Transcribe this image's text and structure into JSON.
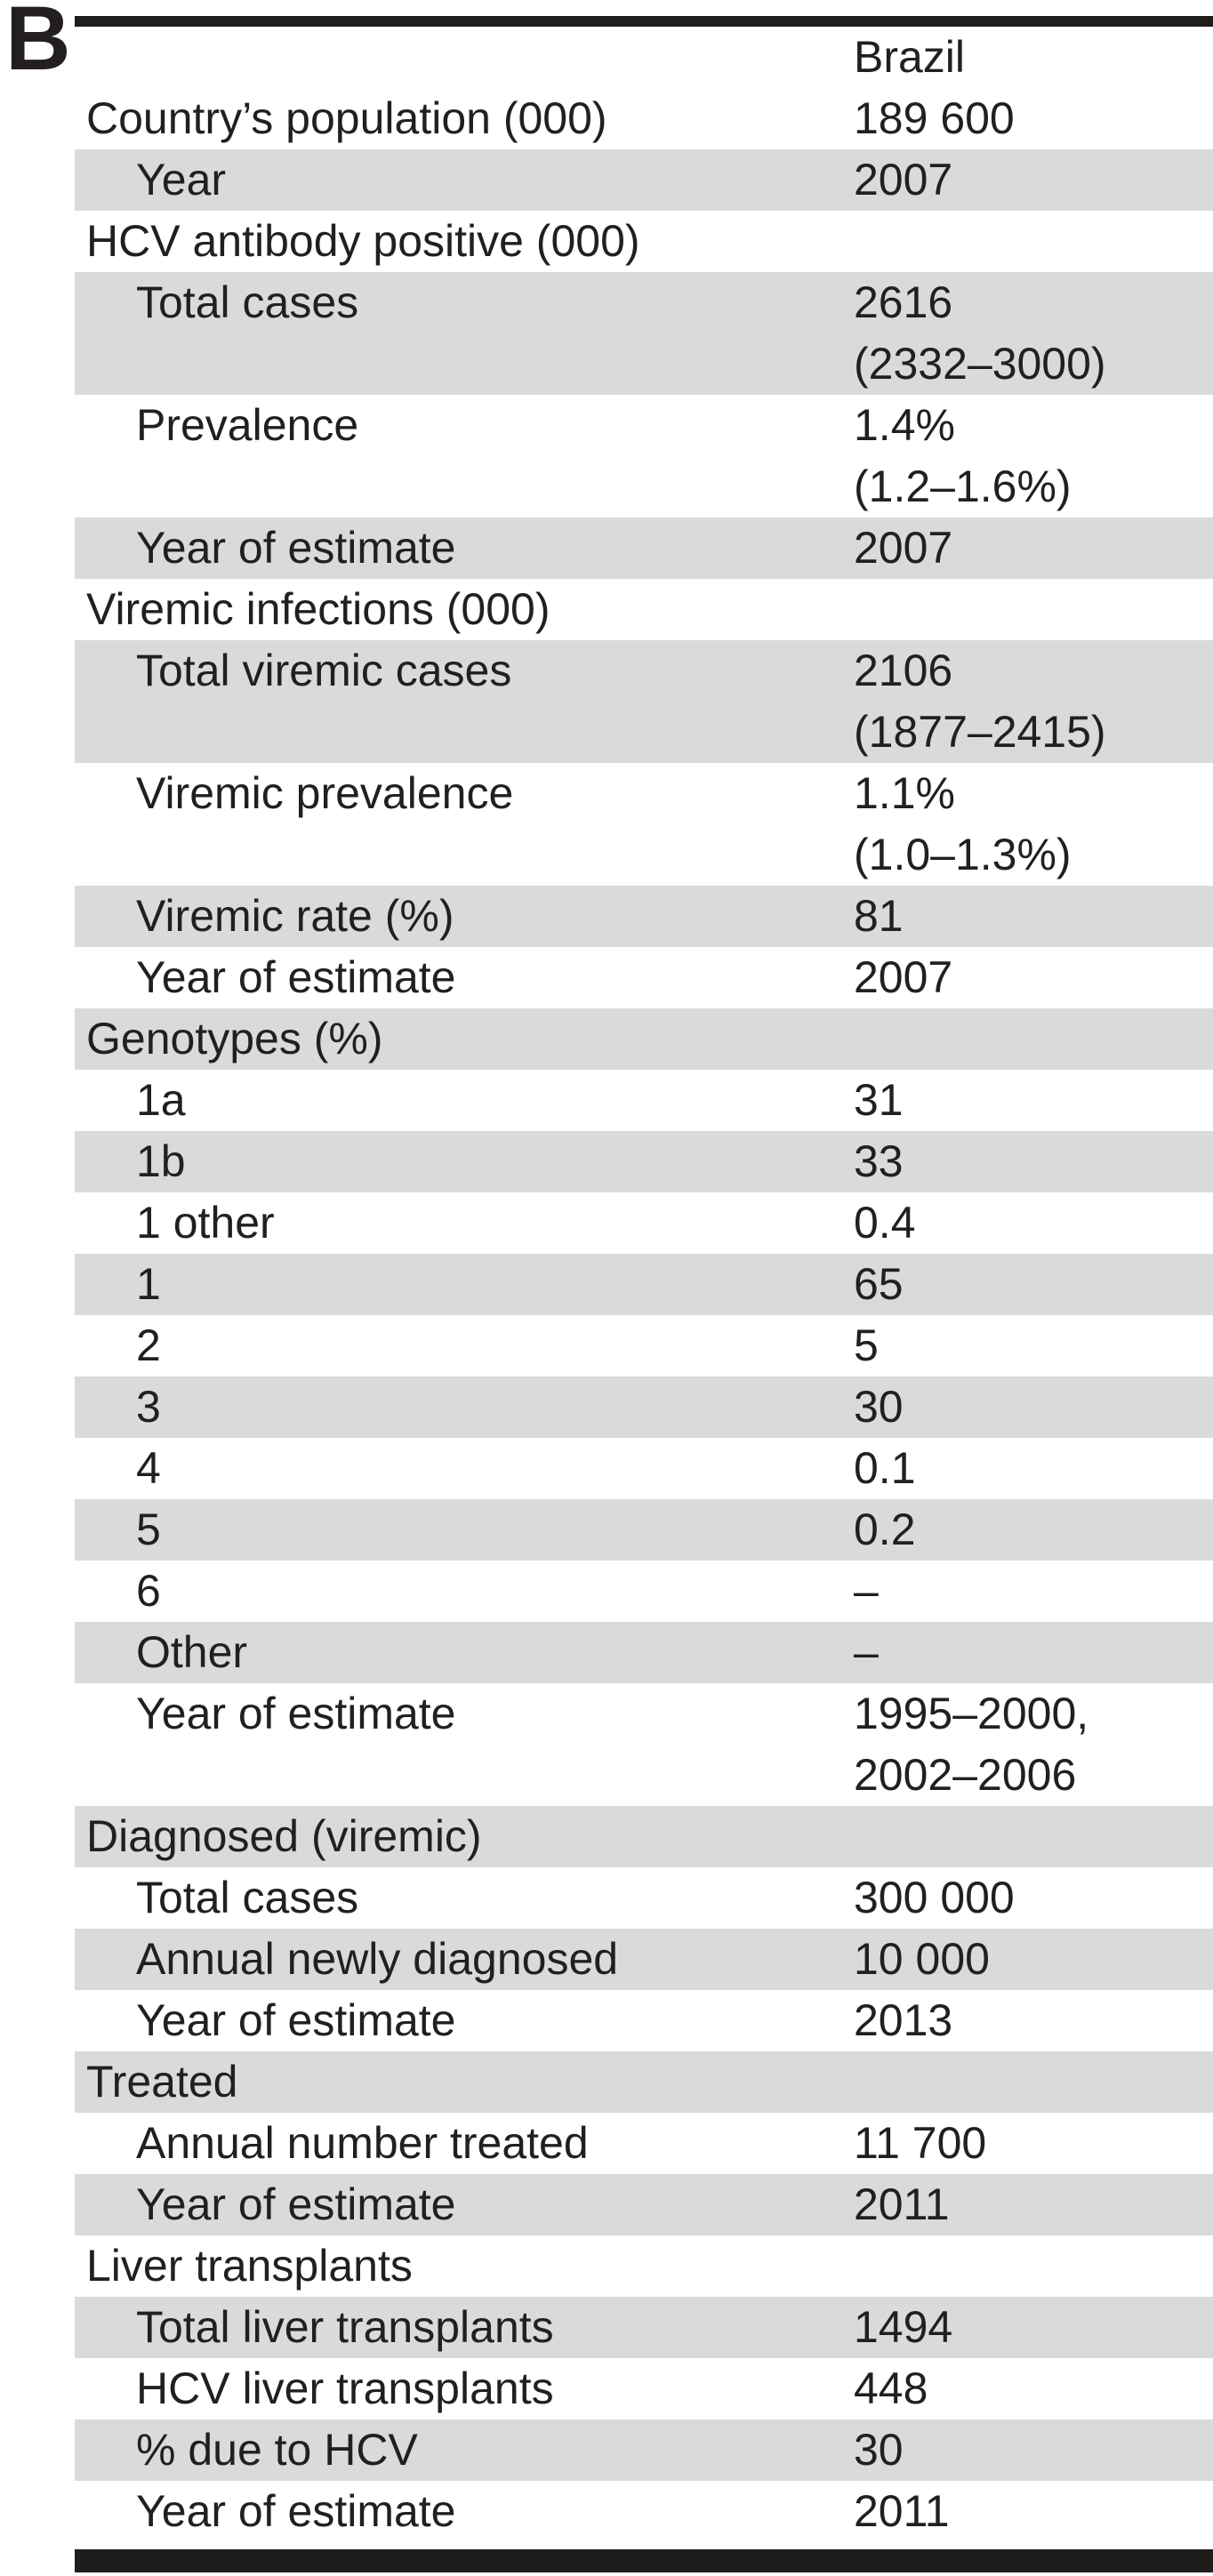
{
  "panel_label": "B",
  "colors": {
    "stripe": "#d9dadb",
    "bar": "#1e1d1b",
    "text": "#231f20"
  },
  "table": {
    "country_header": "Brazil",
    "rows": [
      {
        "label": "Country’s population (000)",
        "value": "189 600",
        "indent": false,
        "shaded": false
      },
      {
        "label": "Year",
        "value": "2007",
        "indent": true,
        "shaded": true
      },
      {
        "label": "HCV antibody positive (000)",
        "value": "",
        "indent": false,
        "shaded": false
      },
      {
        "label": "Total cases",
        "value": "2616",
        "value2": "(2332–3000)",
        "indent": true,
        "shaded": true
      },
      {
        "label": "Prevalence",
        "value": "1.4%",
        "value2": "(1.2–1.6%)",
        "indent": true,
        "shaded": false
      },
      {
        "label": "Year of estimate",
        "value": "2007",
        "indent": true,
        "shaded": true
      },
      {
        "label": "Viremic infections (000)",
        "value": "",
        "indent": false,
        "shaded": false
      },
      {
        "label": "Total viremic cases",
        "value": "2106",
        "value2": "(1877–2415)",
        "indent": true,
        "shaded": true
      },
      {
        "label": "Viremic prevalence",
        "value": "1.1%",
        "value2": "(1.0–1.3%)",
        "indent": true,
        "shaded": false
      },
      {
        "label": "Viremic rate (%)",
        "value": "81",
        "indent": true,
        "shaded": true
      },
      {
        "label": "Year of estimate",
        "value": "2007",
        "indent": true,
        "shaded": false
      },
      {
        "label": "Genotypes (%)",
        "value": "",
        "indent": false,
        "shaded": true
      },
      {
        "label": "1a",
        "value": "31",
        "indent": true,
        "shaded": false
      },
      {
        "label": "1b",
        "value": "33",
        "indent": true,
        "shaded": true
      },
      {
        "label": "1 other",
        "value": "0.4",
        "indent": true,
        "shaded": false
      },
      {
        "label": "1",
        "value": "65",
        "indent": true,
        "shaded": true
      },
      {
        "label": "2",
        "value": "5",
        "indent": true,
        "shaded": false
      },
      {
        "label": "3",
        "value": "30",
        "indent": true,
        "shaded": true
      },
      {
        "label": "4",
        "value": "0.1",
        "indent": true,
        "shaded": false
      },
      {
        "label": "5",
        "value": "0.2",
        "indent": true,
        "shaded": true
      },
      {
        "label": "6",
        "value": "–",
        "indent": true,
        "shaded": false
      },
      {
        "label": "Other",
        "value": "–",
        "indent": true,
        "shaded": true
      },
      {
        "label": "Year of estimate",
        "value": "1995–2000,",
        "value2": "2002–2006",
        "indent": true,
        "shaded": false
      },
      {
        "label": "Diagnosed (viremic)",
        "value": "",
        "indent": false,
        "shaded": true
      },
      {
        "label": "Total cases",
        "value": "300 000",
        "indent": true,
        "shaded": false
      },
      {
        "label": "Annual newly diagnosed",
        "value": "10 000",
        "indent": true,
        "shaded": true
      },
      {
        "label": "Year of estimate",
        "value": "2013",
        "indent": true,
        "shaded": false
      },
      {
        "label": "Treated",
        "value": "",
        "indent": false,
        "shaded": true
      },
      {
        "label": "Annual number treated",
        "value": "11 700",
        "indent": true,
        "shaded": false
      },
      {
        "label": "Year of estimate",
        "value": "2011",
        "indent": true,
        "shaded": true
      },
      {
        "label": "Liver transplants",
        "value": "",
        "indent": false,
        "shaded": false
      },
      {
        "label": "Total liver transplants",
        "value": "1494",
        "indent": true,
        "shaded": true
      },
      {
        "label": "HCV liver transplants",
        "value": "448",
        "indent": true,
        "shaded": false
      },
      {
        "label": "% due to HCV",
        "value": "30",
        "indent": true,
        "shaded": true
      },
      {
        "label": "Year of estimate",
        "value": "2011",
        "indent": true,
        "shaded": false
      }
    ]
  }
}
